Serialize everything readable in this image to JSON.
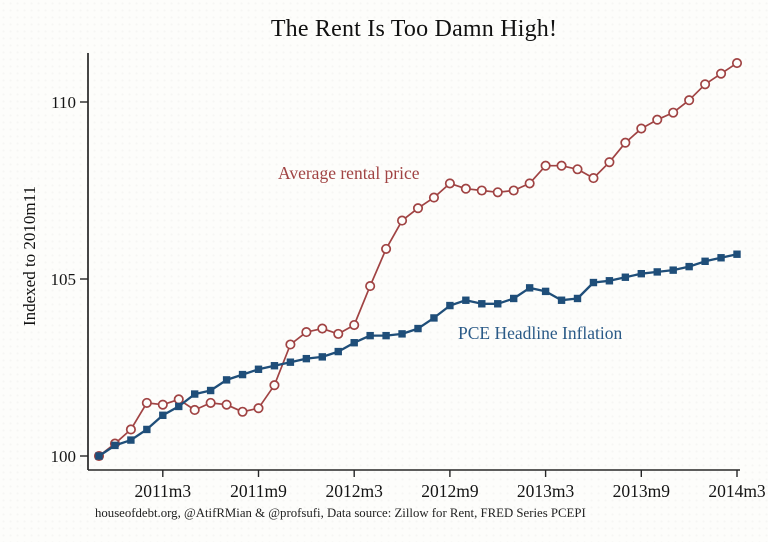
{
  "title": "The Rent Is Too Damn High!",
  "footer": "houseofdebt.org, @AtifRMian & @profsufi, Data source: Zillow for Rent, FRED Series PCEPI",
  "chart_data": {
    "type": "line",
    "title": "The Rent Is Too Damn High!",
    "xlabel": "",
    "ylabel": "Indexed to 2010m11",
    "ylim": [
      99.6,
      111.5
    ],
    "grid": false,
    "legend_position": "direct-labels-on-plot",
    "y_ticks": [
      100,
      105,
      110
    ],
    "x_ticks": [
      {
        "month_index": 4,
        "label": "2011m3"
      },
      {
        "month_index": 10,
        "label": "2011m9"
      },
      {
        "month_index": 16,
        "label": "2012m3"
      },
      {
        "month_index": 22,
        "label": "2012m9"
      },
      {
        "month_index": 28,
        "label": "2013m3"
      },
      {
        "month_index": 34,
        "label": "2013m9"
      },
      {
        "month_index": 40,
        "label": "2014m3"
      }
    ],
    "x": [
      "2010m11",
      "2010m12",
      "2011m1",
      "2011m2",
      "2011m3",
      "2011m4",
      "2011m5",
      "2011m6",
      "2011m7",
      "2011m8",
      "2011m9",
      "2011m10",
      "2011m11",
      "2011m12",
      "2012m1",
      "2012m2",
      "2012m3",
      "2012m4",
      "2012m5",
      "2012m6",
      "2012m7",
      "2012m8",
      "2012m9",
      "2012m10",
      "2012m11",
      "2012m12",
      "2013m1",
      "2013m2",
      "2013m3",
      "2013m4",
      "2013m5",
      "2013m6",
      "2013m7",
      "2013m8",
      "2013m9",
      "2013m10",
      "2013m11",
      "2013m12",
      "2014m1",
      "2014m2",
      "2014m3"
    ],
    "series": [
      {
        "name": "Average rental price",
        "marker": "open-circle",
        "color": "#a04343",
        "label_color": "#a04343",
        "values": [
          100,
          100.35,
          100.75,
          101.5,
          101.45,
          101.6,
          101.3,
          101.5,
          101.45,
          101.25,
          101.35,
          102,
          103.15,
          103.5,
          103.6,
          103.45,
          103.7,
          104.8,
          105.85,
          106.65,
          107,
          107.3,
          107.7,
          107.55,
          107.5,
          107.45,
          107.5,
          107.7,
          108.2,
          108.2,
          108.1,
          107.85,
          108.3,
          108.85,
          109.25,
          109.5,
          109.7,
          110.05,
          110.5,
          110.8,
          111.1
        ]
      },
      {
        "name": "PCE Headline Inflation",
        "marker": "filled-square",
        "color": "#1f4e79",
        "label_color": "#2a5a87",
        "values": [
          100,
          100.3,
          100.45,
          100.75,
          101.15,
          101.4,
          101.75,
          101.85,
          102.15,
          102.3,
          102.45,
          102.55,
          102.65,
          102.75,
          102.8,
          102.95,
          103.2,
          103.4,
          103.4,
          103.45,
          103.6,
          103.9,
          104.25,
          104.4,
          104.3,
          104.3,
          104.45,
          104.75,
          104.65,
          104.4,
          104.45,
          104.9,
          104.95,
          105.05,
          105.15,
          105.2,
          105.25,
          105.35,
          105.5,
          105.6,
          105.7
        ]
      }
    ],
    "colors": {
      "axis": "#262626",
      "tick_text": "#151515",
      "background": "#fdfdfb"
    }
  }
}
